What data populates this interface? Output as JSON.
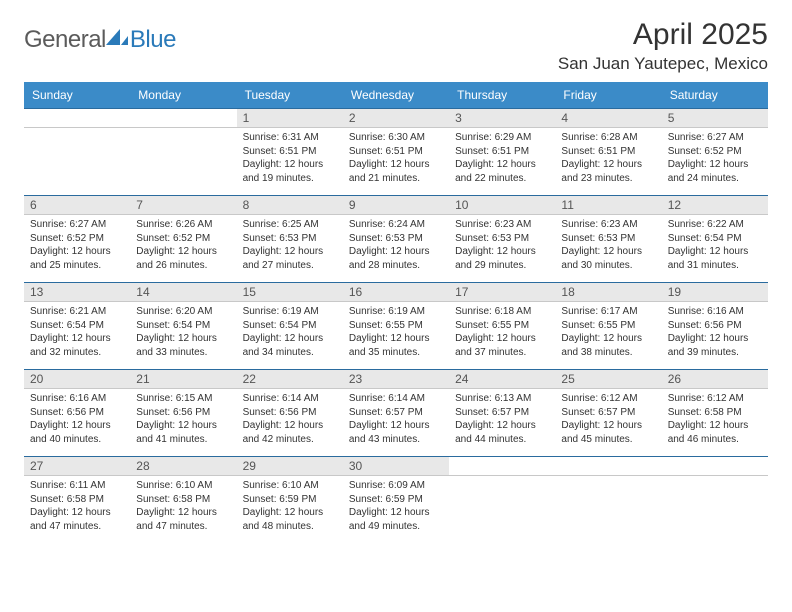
{
  "logo": {
    "text1": "General",
    "text2": "Blue"
  },
  "header": {
    "month_title": "April 2025",
    "location": "San Juan Yautepec, Mexico"
  },
  "colors": {
    "header_bg": "#3b8bc8",
    "header_text": "#ffffff",
    "daynum_bg": "#e8e8e8",
    "daynum_border_top": "#2a6b9e",
    "cell_text": "#333333",
    "logo_blue": "#2a7ab9",
    "logo_gray": "#5b5b5b"
  },
  "calendar": {
    "type": "table",
    "columns": [
      "Sunday",
      "Monday",
      "Tuesday",
      "Wednesday",
      "Thursday",
      "Friday",
      "Saturday"
    ],
    "weeks": [
      {
        "days": [
          {
            "num": "",
            "sunrise": "",
            "sunset": "",
            "daylight1": "",
            "daylight2": ""
          },
          {
            "num": "",
            "sunrise": "",
            "sunset": "",
            "daylight1": "",
            "daylight2": ""
          },
          {
            "num": "1",
            "sunrise": "Sunrise: 6:31 AM",
            "sunset": "Sunset: 6:51 PM",
            "daylight1": "Daylight: 12 hours",
            "daylight2": "and 19 minutes."
          },
          {
            "num": "2",
            "sunrise": "Sunrise: 6:30 AM",
            "sunset": "Sunset: 6:51 PM",
            "daylight1": "Daylight: 12 hours",
            "daylight2": "and 21 minutes."
          },
          {
            "num": "3",
            "sunrise": "Sunrise: 6:29 AM",
            "sunset": "Sunset: 6:51 PM",
            "daylight1": "Daylight: 12 hours",
            "daylight2": "and 22 minutes."
          },
          {
            "num": "4",
            "sunrise": "Sunrise: 6:28 AM",
            "sunset": "Sunset: 6:51 PM",
            "daylight1": "Daylight: 12 hours",
            "daylight2": "and 23 minutes."
          },
          {
            "num": "5",
            "sunrise": "Sunrise: 6:27 AM",
            "sunset": "Sunset: 6:52 PM",
            "daylight1": "Daylight: 12 hours",
            "daylight2": "and 24 minutes."
          }
        ]
      },
      {
        "days": [
          {
            "num": "6",
            "sunrise": "Sunrise: 6:27 AM",
            "sunset": "Sunset: 6:52 PM",
            "daylight1": "Daylight: 12 hours",
            "daylight2": "and 25 minutes."
          },
          {
            "num": "7",
            "sunrise": "Sunrise: 6:26 AM",
            "sunset": "Sunset: 6:52 PM",
            "daylight1": "Daylight: 12 hours",
            "daylight2": "and 26 minutes."
          },
          {
            "num": "8",
            "sunrise": "Sunrise: 6:25 AM",
            "sunset": "Sunset: 6:53 PM",
            "daylight1": "Daylight: 12 hours",
            "daylight2": "and 27 minutes."
          },
          {
            "num": "9",
            "sunrise": "Sunrise: 6:24 AM",
            "sunset": "Sunset: 6:53 PM",
            "daylight1": "Daylight: 12 hours",
            "daylight2": "and 28 minutes."
          },
          {
            "num": "10",
            "sunrise": "Sunrise: 6:23 AM",
            "sunset": "Sunset: 6:53 PM",
            "daylight1": "Daylight: 12 hours",
            "daylight2": "and 29 minutes."
          },
          {
            "num": "11",
            "sunrise": "Sunrise: 6:23 AM",
            "sunset": "Sunset: 6:53 PM",
            "daylight1": "Daylight: 12 hours",
            "daylight2": "and 30 minutes."
          },
          {
            "num": "12",
            "sunrise": "Sunrise: 6:22 AM",
            "sunset": "Sunset: 6:54 PM",
            "daylight1": "Daylight: 12 hours",
            "daylight2": "and 31 minutes."
          }
        ]
      },
      {
        "days": [
          {
            "num": "13",
            "sunrise": "Sunrise: 6:21 AM",
            "sunset": "Sunset: 6:54 PM",
            "daylight1": "Daylight: 12 hours",
            "daylight2": "and 32 minutes."
          },
          {
            "num": "14",
            "sunrise": "Sunrise: 6:20 AM",
            "sunset": "Sunset: 6:54 PM",
            "daylight1": "Daylight: 12 hours",
            "daylight2": "and 33 minutes."
          },
          {
            "num": "15",
            "sunrise": "Sunrise: 6:19 AM",
            "sunset": "Sunset: 6:54 PM",
            "daylight1": "Daylight: 12 hours",
            "daylight2": "and 34 minutes."
          },
          {
            "num": "16",
            "sunrise": "Sunrise: 6:19 AM",
            "sunset": "Sunset: 6:55 PM",
            "daylight1": "Daylight: 12 hours",
            "daylight2": "and 35 minutes."
          },
          {
            "num": "17",
            "sunrise": "Sunrise: 6:18 AM",
            "sunset": "Sunset: 6:55 PM",
            "daylight1": "Daylight: 12 hours",
            "daylight2": "and 37 minutes."
          },
          {
            "num": "18",
            "sunrise": "Sunrise: 6:17 AM",
            "sunset": "Sunset: 6:55 PM",
            "daylight1": "Daylight: 12 hours",
            "daylight2": "and 38 minutes."
          },
          {
            "num": "19",
            "sunrise": "Sunrise: 6:16 AM",
            "sunset": "Sunset: 6:56 PM",
            "daylight1": "Daylight: 12 hours",
            "daylight2": "and 39 minutes."
          }
        ]
      },
      {
        "days": [
          {
            "num": "20",
            "sunrise": "Sunrise: 6:16 AM",
            "sunset": "Sunset: 6:56 PM",
            "daylight1": "Daylight: 12 hours",
            "daylight2": "and 40 minutes."
          },
          {
            "num": "21",
            "sunrise": "Sunrise: 6:15 AM",
            "sunset": "Sunset: 6:56 PM",
            "daylight1": "Daylight: 12 hours",
            "daylight2": "and 41 minutes."
          },
          {
            "num": "22",
            "sunrise": "Sunrise: 6:14 AM",
            "sunset": "Sunset: 6:56 PM",
            "daylight1": "Daylight: 12 hours",
            "daylight2": "and 42 minutes."
          },
          {
            "num": "23",
            "sunrise": "Sunrise: 6:14 AM",
            "sunset": "Sunset: 6:57 PM",
            "daylight1": "Daylight: 12 hours",
            "daylight2": "and 43 minutes."
          },
          {
            "num": "24",
            "sunrise": "Sunrise: 6:13 AM",
            "sunset": "Sunset: 6:57 PM",
            "daylight1": "Daylight: 12 hours",
            "daylight2": "and 44 minutes."
          },
          {
            "num": "25",
            "sunrise": "Sunrise: 6:12 AM",
            "sunset": "Sunset: 6:57 PM",
            "daylight1": "Daylight: 12 hours",
            "daylight2": "and 45 minutes."
          },
          {
            "num": "26",
            "sunrise": "Sunrise: 6:12 AM",
            "sunset": "Sunset: 6:58 PM",
            "daylight1": "Daylight: 12 hours",
            "daylight2": "and 46 minutes."
          }
        ]
      },
      {
        "days": [
          {
            "num": "27",
            "sunrise": "Sunrise: 6:11 AM",
            "sunset": "Sunset: 6:58 PM",
            "daylight1": "Daylight: 12 hours",
            "daylight2": "and 47 minutes."
          },
          {
            "num": "28",
            "sunrise": "Sunrise: 6:10 AM",
            "sunset": "Sunset: 6:58 PM",
            "daylight1": "Daylight: 12 hours",
            "daylight2": "and 47 minutes."
          },
          {
            "num": "29",
            "sunrise": "Sunrise: 6:10 AM",
            "sunset": "Sunset: 6:59 PM",
            "daylight1": "Daylight: 12 hours",
            "daylight2": "and 48 minutes."
          },
          {
            "num": "30",
            "sunrise": "Sunrise: 6:09 AM",
            "sunset": "Sunset: 6:59 PM",
            "daylight1": "Daylight: 12 hours",
            "daylight2": "and 49 minutes."
          },
          {
            "num": "",
            "sunrise": "",
            "sunset": "",
            "daylight1": "",
            "daylight2": ""
          },
          {
            "num": "",
            "sunrise": "",
            "sunset": "",
            "daylight1": "",
            "daylight2": ""
          },
          {
            "num": "",
            "sunrise": "",
            "sunset": "",
            "daylight1": "",
            "daylight2": ""
          }
        ]
      }
    ]
  }
}
